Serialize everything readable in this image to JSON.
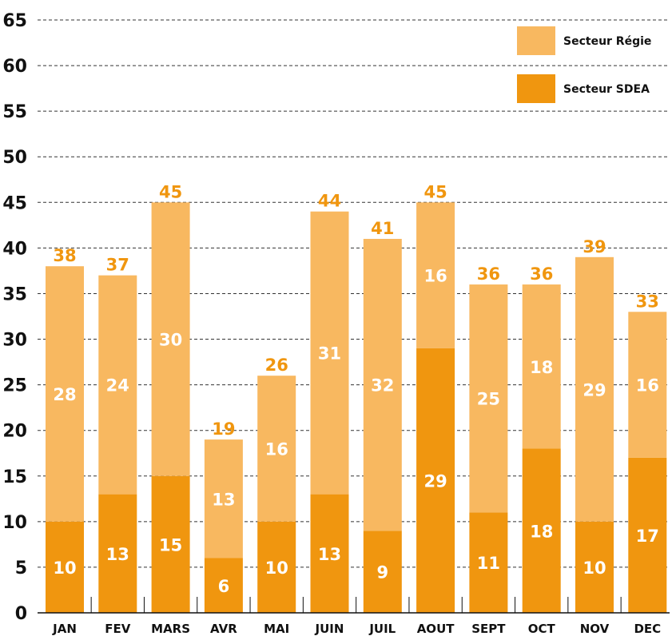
{
  "chart_data": {
    "type": "bar",
    "stacked": true,
    "categories": [
      "JAN",
      "FEV",
      "MARS",
      "AVR",
      "MAI",
      "JUIN",
      "JUIL",
      "AOUT",
      "SEPT",
      "OCT",
      "NOV",
      "DEC"
    ],
    "series": [
      {
        "name": "Secteur SDEA",
        "color": "#f0960f",
        "values": [
          10,
          13,
          15,
          6,
          10,
          13,
          9,
          29,
          11,
          18,
          10,
          17
        ]
      },
      {
        "name": "Secteur Régie",
        "color": "#f8b860",
        "values": [
          28,
          24,
          30,
          13,
          16,
          31,
          32,
          16,
          25,
          18,
          29,
          16
        ]
      }
    ],
    "totals": [
      38,
      37,
      45,
      19,
      26,
      44,
      41,
      45,
      36,
      36,
      39,
      33
    ],
    "ylim": [
      0,
      65
    ],
    "yticks": [
      0,
      5,
      10,
      15,
      20,
      25,
      30,
      35,
      40,
      45,
      50,
      55,
      60,
      65
    ],
    "grid": true,
    "legend": {
      "placement": "top-right",
      "entries": [
        {
          "name": "Secteur Régie",
          "color": "#f8b860"
        },
        {
          "name": "Secteur SDEA",
          "color": "#f0960f"
        }
      ]
    },
    "colors": {
      "total_label": "#f0960f",
      "segment_label": "#ffffff",
      "axis_text": "#111111",
      "grid": "#333333"
    }
  }
}
